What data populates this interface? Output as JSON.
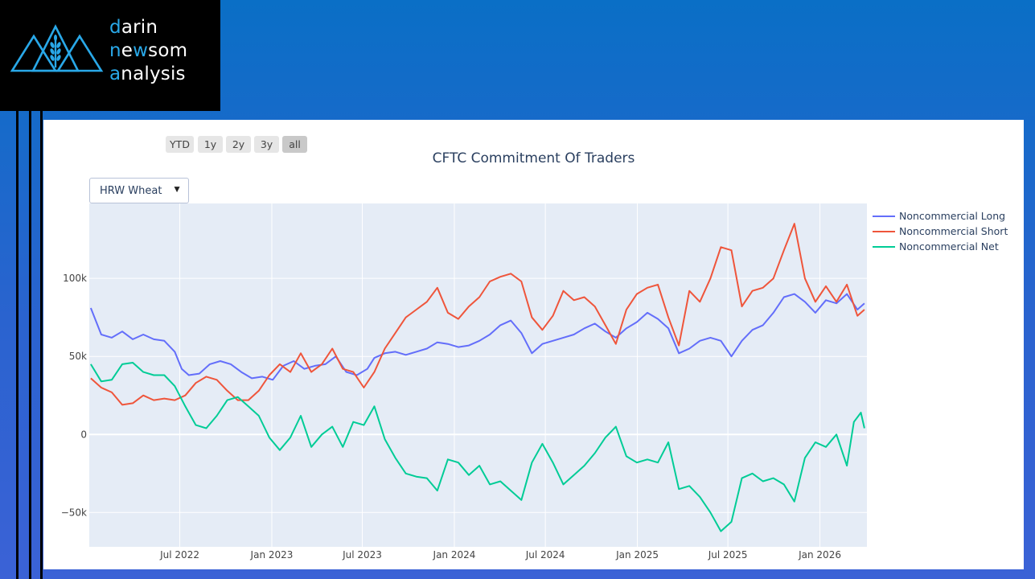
{
  "logo": {
    "line1_acc": "d",
    "line1_rest": "arin",
    "line2_acc1": "n",
    "line2_mid": "e",
    "line2_acc2": "w",
    "line2_rest": "som",
    "line3_acc": "a",
    "line3_rest": "nalysis"
  },
  "range_selector": [
    {
      "label": "YTD"
    },
    {
      "label": "1y"
    },
    {
      "label": "2y"
    },
    {
      "label": "3y"
    },
    {
      "label": "all",
      "active": true
    }
  ],
  "dropdown": {
    "selected": "HRW Wheat"
  },
  "colors": {
    "long": "#636efa",
    "short": "#ef553b",
    "net": "#00cc96",
    "plot_bg": "#e5ecf6"
  },
  "chart_data": {
    "type": "line",
    "title": "CFTC Commitment Of Traders",
    "ylim": [
      -72000,
      148000
    ],
    "y_ticks": [
      {
        "value": 100000,
        "label": "100k"
      },
      {
        "value": 50000,
        "label": "50k"
      },
      {
        "value": 0,
        "label": "0"
      },
      {
        "value": -50000,
        "label": "−50k"
      }
    ],
    "x_ticks": [
      "Jul 2022",
      "Jan 2023",
      "Jul 2023",
      "Jan 2024",
      "Jul 2024",
      "Jan 2025",
      "Jul 2025",
      "Jan 2026"
    ],
    "legend_position": "top-right",
    "grid": true,
    "series": [
      {
        "name": "Noncommercial Long",
        "color": "#636efa",
        "points": [
          [
            "2022-01-04",
            81000
          ],
          [
            "2022-01-25",
            64000
          ],
          [
            "2022-02-15",
            62000
          ],
          [
            "2022-03-08",
            66000
          ],
          [
            "2022-03-29",
            61000
          ],
          [
            "2022-04-19",
            64000
          ],
          [
            "2022-05-10",
            61000
          ],
          [
            "2022-05-31",
            60000
          ],
          [
            "2022-06-21",
            53000
          ],
          [
            "2022-07-05",
            42000
          ],
          [
            "2022-07-19",
            38000
          ],
          [
            "2022-08-09",
            39000
          ],
          [
            "2022-08-30",
            45000
          ],
          [
            "2022-09-20",
            47000
          ],
          [
            "2022-10-11",
            45000
          ],
          [
            "2022-11-01",
            40000
          ],
          [
            "2022-11-22",
            36000
          ],
          [
            "2022-12-13",
            37000
          ],
          [
            "2023-01-03",
            35000
          ],
          [
            "2023-01-24",
            44000
          ],
          [
            "2023-02-14",
            47000
          ],
          [
            "2023-03-07",
            42000
          ],
          [
            "2023-03-28",
            44000
          ],
          [
            "2023-04-18",
            45000
          ],
          [
            "2023-05-09",
            50000
          ],
          [
            "2023-05-30",
            40000
          ],
          [
            "2023-06-20",
            38000
          ],
          [
            "2023-07-11",
            42000
          ],
          [
            "2023-07-25",
            49000
          ],
          [
            "2023-08-15",
            52000
          ],
          [
            "2023-09-05",
            53000
          ],
          [
            "2023-09-26",
            51000
          ],
          [
            "2023-10-17",
            53000
          ],
          [
            "2023-11-07",
            55000
          ],
          [
            "2023-11-28",
            59000
          ],
          [
            "2023-12-19",
            58000
          ],
          [
            "2024-01-09",
            56000
          ],
          [
            "2024-01-30",
            57000
          ],
          [
            "2024-02-20",
            60000
          ],
          [
            "2024-03-12",
            64000
          ],
          [
            "2024-04-02",
            70000
          ],
          [
            "2024-04-23",
            73000
          ],
          [
            "2024-05-14",
            65000
          ],
          [
            "2024-06-04",
            52000
          ],
          [
            "2024-06-25",
            58000
          ],
          [
            "2024-07-16",
            60000
          ],
          [
            "2024-08-06",
            62000
          ],
          [
            "2024-08-27",
            64000
          ],
          [
            "2024-09-17",
            68000
          ],
          [
            "2024-10-08",
            71000
          ],
          [
            "2024-10-29",
            66000
          ],
          [
            "2024-11-19",
            62000
          ],
          [
            "2024-12-10",
            68000
          ],
          [
            "2024-12-31",
            72000
          ],
          [
            "2025-01-21",
            78000
          ],
          [
            "2025-02-11",
            74000
          ],
          [
            "2025-03-04",
            68000
          ],
          [
            "2025-03-25",
            52000
          ],
          [
            "2025-04-15",
            55000
          ],
          [
            "2025-05-06",
            60000
          ],
          [
            "2025-05-27",
            62000
          ],
          [
            "2025-06-17",
            60000
          ],
          [
            "2025-07-08",
            50000
          ],
          [
            "2025-07-29",
            60000
          ],
          [
            "2025-08-19",
            67000
          ],
          [
            "2025-09-09",
            70000
          ],
          [
            "2025-09-30",
            78000
          ],
          [
            "2025-10-21",
            88000
          ],
          [
            "2025-11-11",
            90000
          ],
          [
            "2025-12-02",
            85000
          ],
          [
            "2025-12-23",
            78000
          ],
          [
            "2026-01-13",
            86000
          ],
          [
            "2026-02-03",
            84000
          ],
          [
            "2026-02-24",
            90000
          ],
          [
            "2026-03-17",
            80000
          ],
          [
            "2026-03-31",
            84000
          ]
        ]
      },
      {
        "name": "Noncommercial Short",
        "color": "#ef553b",
        "points": [
          [
            "2022-01-04",
            36000
          ],
          [
            "2022-01-25",
            30000
          ],
          [
            "2022-02-15",
            27000
          ],
          [
            "2022-03-08",
            19000
          ],
          [
            "2022-03-29",
            20000
          ],
          [
            "2022-04-19",
            25000
          ],
          [
            "2022-05-10",
            22000
          ],
          [
            "2022-05-31",
            23000
          ],
          [
            "2022-06-21",
            22000
          ],
          [
            "2022-07-12",
            25000
          ],
          [
            "2022-08-02",
            33000
          ],
          [
            "2022-08-23",
            37000
          ],
          [
            "2022-09-13",
            35000
          ],
          [
            "2022-10-04",
            28000
          ],
          [
            "2022-10-25",
            22000
          ],
          [
            "2022-11-15",
            22000
          ],
          [
            "2022-12-06",
            28000
          ],
          [
            "2022-12-27",
            38000
          ],
          [
            "2023-01-17",
            45000
          ],
          [
            "2023-02-07",
            40000
          ],
          [
            "2023-02-28",
            52000
          ],
          [
            "2023-03-21",
            40000
          ],
          [
            "2023-04-11",
            45000
          ],
          [
            "2023-05-02",
            55000
          ],
          [
            "2023-05-23",
            42000
          ],
          [
            "2023-06-13",
            40000
          ],
          [
            "2023-07-04",
            30000
          ],
          [
            "2023-07-25",
            40000
          ],
          [
            "2023-08-15",
            55000
          ],
          [
            "2023-09-05",
            65000
          ],
          [
            "2023-09-26",
            75000
          ],
          [
            "2023-10-17",
            80000
          ],
          [
            "2023-11-07",
            85000
          ],
          [
            "2023-11-28",
            94000
          ],
          [
            "2023-12-19",
            78000
          ],
          [
            "2024-01-09",
            74000
          ],
          [
            "2024-01-30",
            82000
          ],
          [
            "2024-02-20",
            88000
          ],
          [
            "2024-03-12",
            98000
          ],
          [
            "2024-04-02",
            101000
          ],
          [
            "2024-04-23",
            103000
          ],
          [
            "2024-05-14",
            98000
          ],
          [
            "2024-06-04",
            75000
          ],
          [
            "2024-06-25",
            67000
          ],
          [
            "2024-07-16",
            76000
          ],
          [
            "2024-08-06",
            92000
          ],
          [
            "2024-08-27",
            86000
          ],
          [
            "2024-09-17",
            88000
          ],
          [
            "2024-10-08",
            82000
          ],
          [
            "2024-10-29",
            70000
          ],
          [
            "2024-11-19",
            58000
          ],
          [
            "2024-12-10",
            80000
          ],
          [
            "2024-12-31",
            90000
          ],
          [
            "2025-01-21",
            94000
          ],
          [
            "2025-02-11",
            96000
          ],
          [
            "2025-03-04",
            75000
          ],
          [
            "2025-03-25",
            57000
          ],
          [
            "2025-04-15",
            92000
          ],
          [
            "2025-05-06",
            85000
          ],
          [
            "2025-05-27",
            100000
          ],
          [
            "2025-06-17",
            120000
          ],
          [
            "2025-07-08",
            118000
          ],
          [
            "2025-07-29",
            82000
          ],
          [
            "2025-08-19",
            92000
          ],
          [
            "2025-09-09",
            94000
          ],
          [
            "2025-09-30",
            100000
          ],
          [
            "2025-10-21",
            118000
          ],
          [
            "2025-11-11",
            135000
          ],
          [
            "2025-12-02",
            100000
          ],
          [
            "2025-12-23",
            85000
          ],
          [
            "2026-01-13",
            95000
          ],
          [
            "2026-02-03",
            85000
          ],
          [
            "2026-02-24",
            96000
          ],
          [
            "2026-03-17",
            76000
          ],
          [
            "2026-03-31",
            80000
          ]
        ]
      },
      {
        "name": "Noncommercial Net",
        "color": "#00cc96",
        "points": [
          [
            "2022-01-04",
            45000
          ],
          [
            "2022-01-25",
            34000
          ],
          [
            "2022-02-15",
            35000
          ],
          [
            "2022-03-08",
            45000
          ],
          [
            "2022-03-29",
            46000
          ],
          [
            "2022-04-19",
            40000
          ],
          [
            "2022-05-10",
            38000
          ],
          [
            "2022-05-31",
            38000
          ],
          [
            "2022-06-21",
            31000
          ],
          [
            "2022-07-12",
            18000
          ],
          [
            "2022-08-02",
            6000
          ],
          [
            "2022-08-23",
            4000
          ],
          [
            "2022-09-13",
            12000
          ],
          [
            "2022-10-04",
            22000
          ],
          [
            "2022-10-25",
            24000
          ],
          [
            "2022-11-15",
            18000
          ],
          [
            "2022-12-06",
            12000
          ],
          [
            "2022-12-27",
            -2000
          ],
          [
            "2023-01-17",
            -10000
          ],
          [
            "2023-02-07",
            -2000
          ],
          [
            "2023-02-28",
            12000
          ],
          [
            "2023-03-21",
            -8000
          ],
          [
            "2023-04-11",
            0
          ],
          [
            "2023-05-02",
            5000
          ],
          [
            "2023-05-23",
            -8000
          ],
          [
            "2023-06-13",
            8000
          ],
          [
            "2023-07-04",
            6000
          ],
          [
            "2023-07-25",
            18000
          ],
          [
            "2023-08-15",
            -3000
          ],
          [
            "2023-09-05",
            -15000
          ],
          [
            "2023-09-26",
            -25000
          ],
          [
            "2023-10-17",
            -27000
          ],
          [
            "2023-11-07",
            -28000
          ],
          [
            "2023-11-28",
            -36000
          ],
          [
            "2023-12-19",
            -16000
          ],
          [
            "2024-01-09",
            -18000
          ],
          [
            "2024-01-30",
            -26000
          ],
          [
            "2024-02-20",
            -20000
          ],
          [
            "2024-03-12",
            -32000
          ],
          [
            "2024-04-02",
            -30000
          ],
          [
            "2024-04-23",
            -36000
          ],
          [
            "2024-05-14",
            -42000
          ],
          [
            "2024-06-04",
            -18000
          ],
          [
            "2024-06-25",
            -6000
          ],
          [
            "2024-07-16",
            -18000
          ],
          [
            "2024-08-06",
            -32000
          ],
          [
            "2024-08-27",
            -26000
          ],
          [
            "2024-09-17",
            -20000
          ],
          [
            "2024-10-08",
            -12000
          ],
          [
            "2024-10-29",
            -2000
          ],
          [
            "2024-11-19",
            5000
          ],
          [
            "2024-12-10",
            -14000
          ],
          [
            "2024-12-31",
            -18000
          ],
          [
            "2025-01-21",
            -16000
          ],
          [
            "2025-02-11",
            -18000
          ],
          [
            "2025-03-04",
            -5000
          ],
          [
            "2025-03-25",
            -35000
          ],
          [
            "2025-04-15",
            -33000
          ],
          [
            "2025-05-06",
            -40000
          ],
          [
            "2025-05-27",
            -50000
          ],
          [
            "2025-06-17",
            -62000
          ],
          [
            "2025-07-08",
            -56000
          ],
          [
            "2025-07-29",
            -28000
          ],
          [
            "2025-08-19",
            -25000
          ],
          [
            "2025-09-09",
            -30000
          ],
          [
            "2025-09-30",
            -28000
          ],
          [
            "2025-10-21",
            -32000
          ],
          [
            "2025-11-11",
            -43000
          ],
          [
            "2025-12-02",
            -15000
          ],
          [
            "2025-12-23",
            -5000
          ],
          [
            "2026-01-13",
            -8000
          ],
          [
            "2026-02-03",
            0
          ],
          [
            "2026-02-24",
            -20000
          ],
          [
            "2026-03-10",
            8000
          ],
          [
            "2026-03-24",
            14000
          ],
          [
            "2026-03-31",
            4000
          ]
        ]
      }
    ]
  }
}
